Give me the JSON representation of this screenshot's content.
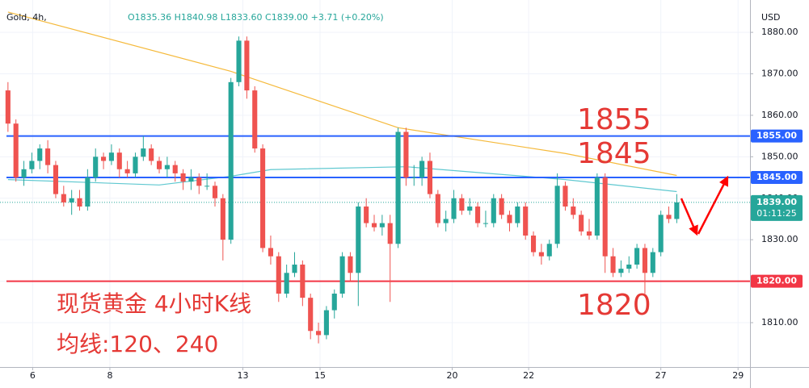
{
  "chart_data": {
    "type": "candlestick",
    "symbol": "Gold, 4h,",
    "ohlc_header": "O1835.36 H1840.98 L1833.60 C1839.00 +3.71 (+0.20%)",
    "currency": "USD",
    "up_color": "#26a69a",
    "down_color": "#ef5350",
    "candles": [
      [
        1866,
        1868,
        1856,
        1858
      ],
      [
        1858,
        1859,
        1844,
        1845
      ],
      [
        1845,
        1849,
        1843,
        1847
      ],
      [
        1847,
        1851,
        1846,
        1849
      ],
      [
        1849,
        1853,
        1847,
        1852
      ],
      [
        1852,
        1854,
        1846,
        1848
      ],
      [
        1848,
        1849,
        1840,
        1841
      ],
      [
        1841,
        1843,
        1838,
        1839
      ],
      [
        1839,
        1842,
        1836,
        1840
      ],
      [
        1840,
        1842,
        1837,
        1838
      ],
      [
        1838,
        1847,
        1837,
        1845
      ],
      [
        1845,
        1852,
        1844,
        1850
      ],
      [
        1850,
        1851,
        1847,
        1849
      ],
      [
        1849,
        1853,
        1848,
        1851
      ],
      [
        1851,
        1852,
        1845,
        1847
      ],
      [
        1847,
        1849,
        1845,
        1846
      ],
      [
        1846,
        1851,
        1845,
        1850
      ],
      [
        1850,
        1855,
        1849,
        1852
      ],
      [
        1852,
        1853,
        1848,
        1849
      ],
      [
        1849,
        1850,
        1846,
        1847
      ],
      [
        1847,
        1850,
        1845,
        1848
      ],
      [
        1848,
        1849,
        1844,
        1846
      ],
      [
        1846,
        1847,
        1842,
        1844
      ],
      [
        1844,
        1847,
        1842,
        1845
      ],
      [
        1845,
        1846,
        1841,
        1843
      ],
      [
        1843,
        1846,
        1842,
        1843
      ],
      [
        1843,
        1844,
        1838,
        1840
      ],
      [
        1840,
        1841,
        1825,
        1830
      ],
      [
        1830,
        1869,
        1829,
        1868
      ],
      [
        1868,
        1879,
        1867,
        1878
      ],
      [
        1878,
        1879,
        1864,
        1866
      ],
      [
        1866,
        1867,
        1851,
        1852
      ],
      [
        1852,
        1853,
        1827,
        1828
      ],
      [
        1828,
        1831,
        1824,
        1826
      ],
      [
        1826,
        1827,
        1815,
        1817
      ],
      [
        1817,
        1824,
        1816,
        1822
      ],
      [
        1822,
        1827,
        1821,
        1824
      ],
      [
        1824,
        1825,
        1814,
        1816
      ],
      [
        1816,
        1817,
        1806,
        1808
      ],
      [
        1808,
        1810,
        1805,
        1807
      ],
      [
        1807,
        1814,
        1806,
        1813
      ],
      [
        1813,
        1818,
        1811,
        1817
      ],
      [
        1817,
        1827,
        1816,
        1826
      ],
      [
        1826,
        1827,
        1820,
        1822
      ],
      [
        1822,
        1839,
        1814,
        1838
      ],
      [
        1838,
        1840,
        1833,
        1834
      ],
      [
        1834,
        1836,
        1832,
        1833
      ],
      [
        1833,
        1836,
        1831,
        1834
      ],
      [
        1834,
        1836,
        1815,
        1829
      ],
      [
        1829,
        1857,
        1828,
        1856
      ],
      [
        1856,
        1857,
        1843,
        1845
      ],
      [
        1845,
        1848,
        1843,
        1845
      ],
      [
        1845,
        1850,
        1843,
        1849
      ],
      [
        1849,
        1851,
        1840,
        1841
      ],
      [
        1841,
        1842,
        1833,
        1834
      ],
      [
        1834,
        1837,
        1832,
        1835
      ],
      [
        1835,
        1842,
        1834,
        1840
      ],
      [
        1840,
        1841,
        1836,
        1837
      ],
      [
        1837,
        1840,
        1836,
        1838
      ],
      [
        1838,
        1839,
        1833,
        1834
      ],
      [
        1834,
        1837,
        1833,
        1834
      ],
      [
        1834,
        1841,
        1833,
        1840
      ],
      [
        1840,
        1841,
        1835,
        1836
      ],
      [
        1836,
        1837,
        1832,
        1834
      ],
      [
        1834,
        1839,
        1833,
        1838
      ],
      [
        1838,
        1839,
        1830,
        1831
      ],
      [
        1831,
        1832,
        1826,
        1827
      ],
      [
        1827,
        1829,
        1824,
        1826
      ],
      [
        1826,
        1830,
        1825,
        1829
      ],
      [
        1829,
        1846,
        1828,
        1843
      ],
      [
        1843,
        1844,
        1837,
        1838
      ],
      [
        1838,
        1840,
        1835,
        1836
      ],
      [
        1836,
        1837,
        1831,
        1832
      ],
      [
        1832,
        1835,
        1830,
        1831
      ],
      [
        1831,
        1846,
        1830,
        1845
      ],
      [
        1845,
        1846,
        1822,
        1826
      ],
      [
        1826,
        1828,
        1821,
        1822
      ],
      [
        1822,
        1825,
        1821,
        1823
      ],
      [
        1823,
        1826,
        1822,
        1824
      ],
      [
        1824,
        1829,
        1823,
        1828
      ],
      [
        1828,
        1829,
        1817,
        1822
      ],
      [
        1822,
        1828,
        1821,
        1827
      ],
      [
        1827,
        1837,
        1826,
        1836
      ],
      [
        1836,
        1838,
        1834,
        1835
      ],
      [
        1835,
        1841,
        1834,
        1839
      ]
    ],
    "series": [
      {
        "color": "#f5b93a",
        "x": [
          0,
          28,
          49,
          70,
          84
        ],
        "values": [
          1884.9,
          1870.6,
          1857,
          1850.8,
          1845.5
        ]
      },
      {
        "color": "#5fc8d0",
        "x": [
          0,
          19,
          28,
          33,
          50,
          70,
          84
        ],
        "values": [
          1844.5,
          1843.2,
          1845.3,
          1846.9,
          1847.6,
          1844.5,
          1841.6
        ]
      }
    ],
    "levels": [
      {
        "value": 1855,
        "label": "1855.00",
        "color": "#2962ff"
      },
      {
        "value": 1845,
        "label": "1845.00",
        "color": "#2962ff"
      },
      {
        "value": 1820,
        "label": "1820.00",
        "color": "#f23645"
      }
    ],
    "last": {
      "value": 1839,
      "label": "1839.00",
      "countdown": "01:11:25",
      "color": "#26a69a"
    },
    "annotations": [
      "1855",
      "1845",
      "1820",
      "现货黄金 4小时K线",
      "均线:120、240"
    ],
    "xlim": [
      -1,
      93.2
    ],
    "xticks": [
      {
        "value": 3.1,
        "label": "6"
      },
      {
        "value": 12.8,
        "label": "8"
      },
      {
        "value": 29.5,
        "label": "13"
      },
      {
        "value": 39.2,
        "label": "15"
      },
      {
        "value": 55.8,
        "label": "20"
      },
      {
        "value": 65.4,
        "label": "22"
      },
      {
        "value": 82,
        "label": "27"
      },
      {
        "value": 91.7,
        "label": "29"
      }
    ],
    "ylim": [
      1799.3,
      1887.8
    ],
    "yticks": [
      {
        "value": 1810,
        "label": "1810.00"
      },
      {
        "value": 1820,
        "label": "1820.00"
      },
      {
        "value": 1830,
        "label": "1830.00"
      },
      {
        "value": 1840,
        "label": "1840.00"
      },
      {
        "value": 1850,
        "label": "1850.00"
      },
      {
        "value": 1860,
        "label": "1860.00"
      },
      {
        "value": 1870,
        "label": "1870.00"
      },
      {
        "value": 1880,
        "label": "1880.00"
      }
    ],
    "grid": true
  }
}
